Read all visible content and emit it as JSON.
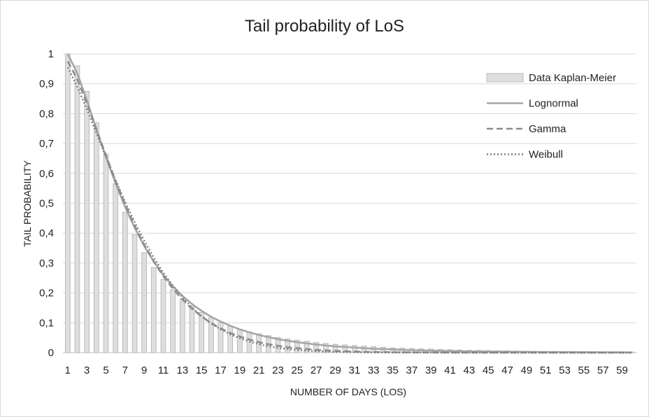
{
  "chart_data": {
    "type": "bar",
    "title": "Tail probability  of LoS",
    "xlabel": "NUMBER OF DAYS (LOS)",
    "ylabel": "TAIL PROBABILITY",
    "ylim": [
      0,
      1
    ],
    "yticks": [
      "0",
      "0,1",
      "0,2",
      "0,3",
      "0,4",
      "0,5",
      "0,6",
      "0,7",
      "0,8",
      "0,9",
      "1"
    ],
    "xticks": [
      "1",
      "3",
      "5",
      "7",
      "9",
      "11",
      "13",
      "15",
      "17",
      "19",
      "21",
      "23",
      "25",
      "27",
      "29",
      "31",
      "33",
      "35",
      "37",
      "39",
      "41",
      "43",
      "45",
      "47",
      "49",
      "51",
      "53",
      "55",
      "57",
      "59"
    ],
    "x_days": [
      1,
      2,
      3,
      4,
      5,
      6,
      7,
      8,
      9,
      10,
      11,
      12,
      13,
      14,
      15,
      16,
      17,
      18,
      19,
      20,
      21,
      22,
      23,
      24,
      25,
      26,
      27,
      28,
      29,
      30,
      31,
      32,
      33,
      34,
      35,
      36,
      37,
      38,
      39,
      40,
      41,
      42,
      43,
      44,
      45,
      46,
      47,
      48,
      49,
      50,
      51,
      52,
      53,
      54,
      55,
      56,
      57,
      58,
      59,
      60
    ],
    "grid": true,
    "legend_position": "right",
    "series": [
      {
        "name": "Data Kaplan-Meier",
        "style": "bar",
        "values": [
          1.0,
          0.96,
          0.875,
          0.77,
          0.665,
          0.565,
          0.47,
          0.395,
          0.335,
          0.285,
          0.245,
          0.21,
          0.18,
          0.155,
          0.135,
          0.117,
          0.1,
          0.088,
          0.078,
          0.07,
          0.063,
          0.057,
          0.051,
          0.046,
          0.042,
          0.038,
          0.034,
          0.031,
          0.028,
          0.026,
          0.024,
          0.022,
          0.02,
          0.018,
          0.016,
          0.015,
          0.014,
          0.013,
          0.012,
          0.011,
          0.01,
          0.009,
          0.008,
          0.0075,
          0.007,
          0.0065,
          0.006,
          0.0055,
          0.005,
          0.0045,
          0.0042,
          0.004,
          0.0037,
          0.0035,
          0.0032,
          0.003,
          0.0028,
          0.0026,
          0.0024,
          0.0022
        ]
      },
      {
        "name": "Lognormal",
        "style": "solid",
        "values": [
          1.0,
          0.935,
          0.845,
          0.748,
          0.655,
          0.567,
          0.488,
          0.418,
          0.357,
          0.305,
          0.26,
          0.222,
          0.19,
          0.163,
          0.14,
          0.12,
          0.104,
          0.09,
          0.078,
          0.068,
          0.059,
          0.052,
          0.045,
          0.04,
          0.035,
          0.031,
          0.027,
          0.024,
          0.021,
          0.019,
          0.017,
          0.015,
          0.013,
          0.012,
          0.011,
          0.0095,
          0.0085,
          0.0076,
          0.0068,
          0.0061,
          0.0055,
          0.0049,
          0.0044,
          0.004,
          0.0036,
          0.0033,
          0.003,
          0.0027,
          0.0025,
          0.0022,
          0.002,
          0.0019,
          0.0017,
          0.0016,
          0.0014,
          0.0013,
          0.0012,
          0.0011,
          0.001,
          0.0009
        ]
      },
      {
        "name": "Gamma",
        "style": "dashed",
        "values": [
          0.975,
          0.915,
          0.835,
          0.748,
          0.66,
          0.575,
          0.497,
          0.425,
          0.361,
          0.305,
          0.256,
          0.214,
          0.178,
          0.147,
          0.121,
          0.099,
          0.081,
          0.066,
          0.054,
          0.044,
          0.035,
          0.028,
          0.023,
          0.018,
          0.015,
          0.012,
          0.009,
          0.0074,
          0.0059,
          0.0047,
          0.0037,
          0.0029,
          0.0023,
          0.0018,
          0.0014,
          0.0011,
          0.0009,
          0.0007,
          0.0005,
          0.0004,
          0.0003,
          0.0003,
          0.0002,
          0.0002,
          0.0001,
          0.0001,
          0.0001,
          0.0001,
          0.0001,
          0.0,
          0.0,
          0.0,
          0.0,
          0.0,
          0.0,
          0.0,
          0.0,
          0.0,
          0.0,
          0.0
        ]
      },
      {
        "name": "Weibull",
        "style": "dotted",
        "values": [
          0.955,
          0.89,
          0.815,
          0.735,
          0.655,
          0.578,
          0.505,
          0.437,
          0.375,
          0.318,
          0.268,
          0.224,
          0.185,
          0.151,
          0.122,
          0.098,
          0.078,
          0.061,
          0.048,
          0.037,
          0.028,
          0.021,
          0.016,
          0.012,
          0.009,
          0.0066,
          0.0048,
          0.0035,
          0.0025,
          0.0018,
          0.0013,
          0.0009,
          0.0006,
          0.0004,
          0.0003,
          0.0002,
          0.0001,
          0.0001,
          0.0001,
          0.0,
          0.0,
          0.0,
          0.0,
          0.0,
          0.0,
          0.0,
          0.0,
          0.0,
          0.0,
          0.0,
          0.0,
          0.0,
          0.0,
          0.0,
          0.0,
          0.0,
          0.0,
          0.0,
          0.0,
          0.0
        ]
      }
    ]
  }
}
